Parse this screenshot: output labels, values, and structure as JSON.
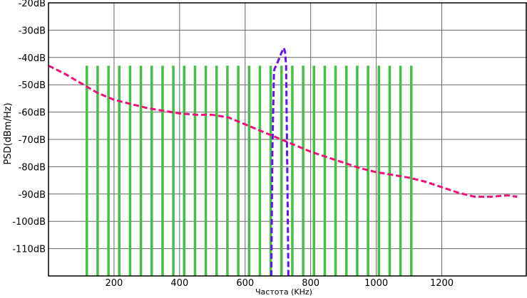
{
  "chart_data": {
    "type": "line",
    "title": "",
    "xlabel": "Частота (KHz)",
    "ylabel": "PSD(dBm/Hz)",
    "xlim": [
      0,
      1460
    ],
    "ylim": [
      -120,
      -20
    ],
    "grid": true,
    "legend": "none",
    "x_ticks": [
      {
        "value": 200,
        "label": "200"
      },
      {
        "value": 400,
        "label": "400"
      },
      {
        "value": 600,
        "label": "600"
      },
      {
        "value": 800,
        "label": "800"
      },
      {
        "value": 1000,
        "label": "1000"
      },
      {
        "value": 1200,
        "label": "1200"
      }
    ],
    "y_ticks": [
      {
        "value": -20,
        "label": "-20dB"
      },
      {
        "value": -30,
        "label": "-30dB"
      },
      {
        "value": -40,
        "label": "-40dB"
      },
      {
        "value": -50,
        "label": "-50dB"
      },
      {
        "value": -60,
        "label": "-60dB"
      },
      {
        "value": -70,
        "label": "-70dB"
      },
      {
        "value": -80,
        "label": "-80dB"
      },
      {
        "value": -90,
        "label": "-90dB"
      },
      {
        "value": -100,
        "label": "-100dB"
      },
      {
        "value": -110,
        "label": "-110dB"
      }
    ],
    "series": [
      {
        "color": "#44c044",
        "style": "solid",
        "kind": "vertical-lines",
        "x": [
          117,
          150,
          183,
          216,
          249,
          282,
          315,
          348,
          381,
          414,
          447,
          480,
          513,
          546,
          579,
          612,
          645,
          678,
          711,
          744,
          777,
          810,
          843,
          876,
          909,
          942,
          975,
          1008,
          1041,
          1074,
          1107
        ],
        "y_top": -43,
        "y_bottom": -120
      },
      {
        "color": "#ee1177",
        "style": "dashed",
        "x": [
          0,
          50,
          100,
          150,
          200,
          250,
          300,
          350,
          400,
          450,
          500,
          550,
          600,
          650,
          700,
          750,
          800,
          850,
          900,
          950,
          1000,
          1050,
          1100,
          1150,
          1200,
          1250,
          1300,
          1350,
          1400,
          1430
        ],
        "y": [
          -43,
          -46,
          -49.5,
          -53,
          -55.5,
          -57,
          -58.5,
          -59.5,
          -60.5,
          -61,
          -61,
          -62,
          -64.5,
          -67,
          -69.5,
          -72,
          -74.5,
          -76.5,
          -78.5,
          -80.5,
          -82,
          -83,
          -84,
          -85.5,
          -87.5,
          -89.5,
          -91,
          -91,
          -90.5,
          -91
        ]
      },
      {
        "color": "#6611ee",
        "style": "dashed",
        "x": [
          680,
          683,
          688,
          690,
          695,
          710,
          718,
          722,
          725,
          728,
          732
        ],
        "y": [
          -120,
          -75,
          -45,
          -44,
          -43,
          -38.5,
          -36.5,
          -38,
          -43,
          -75,
          -120
        ]
      }
    ]
  }
}
